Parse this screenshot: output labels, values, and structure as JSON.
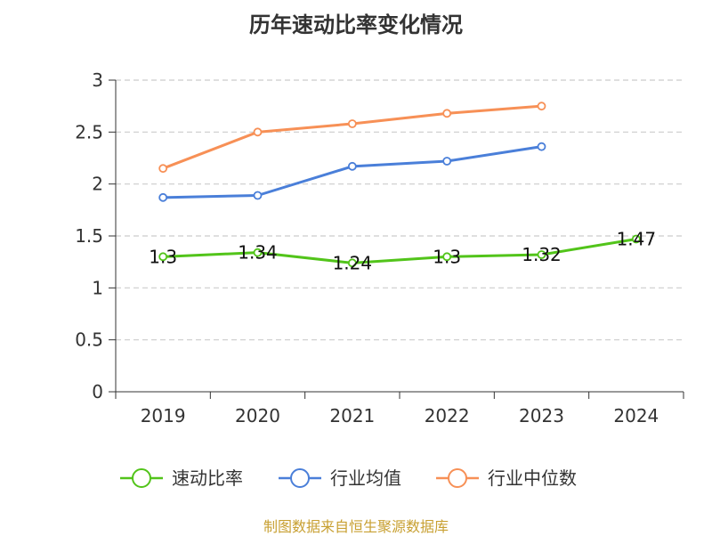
{
  "colors": {
    "series_0": "#52c41a",
    "series_1": "#4a7fd9",
    "series_2": "#f79056",
    "grid": "#cccccc",
    "axis": "#333333",
    "source": "#c8a032"
  },
  "chart_data": {
    "type": "line",
    "title": "历年速动比率变化情况",
    "categories": [
      "2019",
      "2020",
      "2021",
      "2022",
      "2023",
      "2024"
    ],
    "y_ticks": [
      "0",
      "0.5",
      "1",
      "1.5",
      "2",
      "2.5",
      "3"
    ],
    "ylim": [
      0,
      3
    ],
    "grid": true,
    "legend_position": "bottom",
    "series": [
      {
        "name": "速动比率",
        "values": [
          1.3,
          1.34,
          1.24,
          1.3,
          1.32,
          1.47
        ],
        "labels": [
          "1.3",
          "1.34",
          "1.24",
          "1.3",
          "1.32",
          "1.47"
        ]
      },
      {
        "name": "行业均值",
        "values": [
          1.87,
          1.89,
          2.17,
          2.22,
          2.36,
          null
        ]
      },
      {
        "name": "行业中位数",
        "values": [
          2.15,
          2.5,
          2.58,
          2.68,
          2.75,
          null
        ]
      }
    ]
  },
  "source": "制图数据来自恒生聚源数据库"
}
